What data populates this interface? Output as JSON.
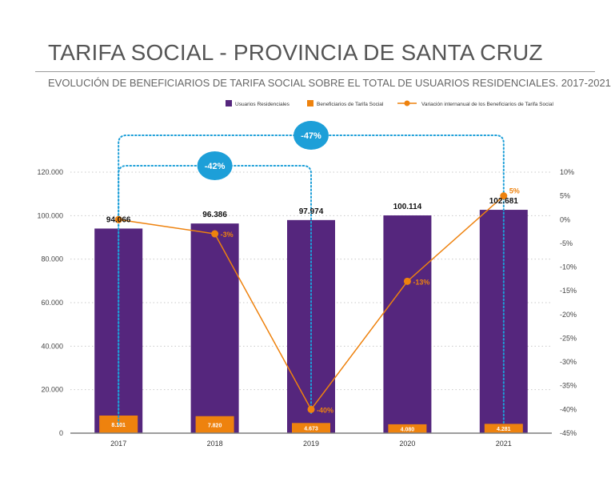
{
  "chart_data": {
    "type": "bar",
    "title": "TARIFA SOCIAL - PROVINCIA DE SANTA CRUZ",
    "subtitle": "EVOLUCIÓN DE BENEFICIARIOS DE TARIFA SOCIAL SOBRE EL TOTAL DE USUARIOS RESIDENCIALES. 2017-2021",
    "categories": [
      "2017",
      "2018",
      "2019",
      "2020",
      "2021"
    ],
    "series": [
      {
        "name": "Usuarios Residenciales",
        "values": [
          94066,
          96386,
          97974,
          100114,
          102681
        ],
        "labels": [
          "94.066",
          "96.386",
          "97.974",
          "100.114",
          "102.681"
        ],
        "color": "#55267d"
      },
      {
        "name": "Beneficiarios de Tarifa Social",
        "values": [
          8101,
          7820,
          4673,
          4080,
          4281
        ],
        "labels": [
          "8.101",
          "7.820",
          "4.673",
          "4.080",
          "4.281"
        ],
        "color": "#ee820e"
      },
      {
        "name": "Variación internanual de los Beneficiarios de Tarifa Social",
        "type": "line",
        "axis": "right",
        "values": [
          0,
          -3,
          -40,
          -13,
          5
        ],
        "labels": [
          "",
          "-3%",
          "-40%",
          "-13%",
          "5%"
        ],
        "color": "#ee820e"
      }
    ],
    "y_left": {
      "ylim": [
        0,
        120000
      ],
      "ticks": [
        0,
        20000,
        40000,
        60000,
        80000,
        100000,
        120000
      ],
      "tick_labels": [
        "0",
        "20.000",
        "40.000",
        "60.000",
        "80.000",
        "100.000",
        "120.000"
      ]
    },
    "y_right": {
      "ylim": [
        -45,
        10
      ],
      "ticks": [
        10,
        5,
        0,
        -5,
        -10,
        -15,
        -20,
        -25,
        -30,
        -35,
        -40,
        -45
      ],
      "tick_labels": [
        "10%",
        "5%",
        "0%",
        "-5%",
        "-10%",
        "-15%",
        "-20%",
        "-25%",
        "-30%",
        "-35%",
        "-40%",
        "-45%"
      ]
    },
    "grid": true,
    "legend_position": "top",
    "annotations": [
      {
        "from": "2017",
        "to": "2019",
        "label": "-42%"
      },
      {
        "from": "2017",
        "to": "2021",
        "label": "-47%"
      }
    ]
  }
}
